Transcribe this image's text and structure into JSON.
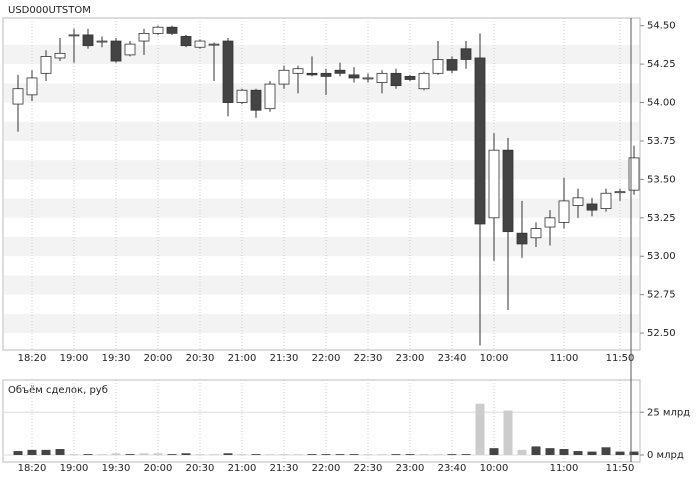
{
  "chart_data": [
    {
      "type": "candlestick",
      "title": "USD000UTSTOM",
      "categories": [
        null,
        "18:20",
        null,
        null,
        "19:00",
        null,
        null,
        "19:30",
        null,
        null,
        "20:00",
        null,
        null,
        "20:30",
        null,
        null,
        "21:00",
        null,
        null,
        "21:30",
        null,
        null,
        "22:00",
        null,
        null,
        "22:30",
        null,
        null,
        "23:00",
        null,
        null,
        "23:40",
        null,
        null,
        "10:00",
        null,
        null,
        null,
        null,
        "11:00",
        null,
        null,
        null,
        "11:50",
        null
      ],
      "open": [
        53.99,
        54.05,
        54.19,
        54.29,
        54.44,
        54.44,
        54.4,
        54.4,
        54.31,
        54.4,
        54.45,
        54.49,
        54.43,
        54.36,
        54.38,
        54.4,
        54.0,
        54.08,
        53.96,
        54.12,
        54.19,
        54.19,
        54.19,
        54.21,
        54.18,
        54.16,
        54.13,
        54.19,
        54.17,
        54.09,
        54.19,
        54.28,
        54.35,
        54.29,
        53.25,
        53.69,
        53.15,
        53.12,
        53.19,
        53.22,
        53.33,
        53.34,
        53.31,
        53.42,
        53.43
      ],
      "high": [
        54.18,
        54.21,
        54.34,
        54.42,
        54.48,
        54.48,
        54.43,
        54.42,
        54.4,
        54.48,
        54.5,
        54.5,
        54.44,
        54.41,
        54.39,
        54.42,
        54.09,
        54.09,
        54.14,
        54.24,
        54.24,
        54.3,
        54.22,
        54.26,
        54.23,
        54.19,
        54.21,
        54.22,
        54.18,
        54.2,
        54.4,
        54.3,
        54.4,
        54.45,
        53.8,
        53.77,
        53.36,
        53.22,
        53.3,
        53.51,
        53.44,
        53.38,
        53.44,
        53.44,
        53.72
      ],
      "low": [
        53.81,
        54.01,
        54.14,
        54.27,
        54.26,
        54.35,
        54.36,
        54.26,
        54.3,
        54.31,
        54.44,
        54.44,
        54.36,
        54.35,
        54.14,
        53.91,
        53.99,
        53.9,
        53.94,
        54.09,
        54.06,
        54.17,
        54.05,
        54.17,
        54.13,
        54.13,
        54.06,
        54.09,
        54.14,
        54.08,
        54.18,
        54.19,
        54.22,
        52.42,
        52.97,
        52.65,
        52.99,
        53.06,
        53.07,
        53.18,
        53.25,
        53.26,
        53.29,
        53.36,
        53.4
      ],
      "close": [
        54.09,
        54.16,
        54.3,
        54.32,
        54.44,
        54.37,
        54.4,
        54.27,
        54.38,
        54.45,
        54.49,
        54.45,
        54.37,
        54.4,
        54.38,
        54.0,
        54.08,
        53.95,
        54.12,
        54.21,
        54.22,
        54.18,
        54.17,
        54.19,
        54.16,
        54.16,
        54.19,
        54.11,
        54.15,
        54.19,
        54.28,
        54.21,
        54.28,
        53.21,
        53.69,
        53.16,
        53.08,
        53.18,
        53.25,
        53.36,
        53.38,
        53.3,
        53.41,
        53.42,
        53.64
      ],
      "up_color": "#ffffff",
      "down_color": "#444444",
      "ylim": [
        52.39,
        54.55
      ],
      "yticks": [
        {
          "value": 52.5,
          "label": "52.50"
        },
        {
          "value": 52.75,
          "label": "52.75"
        },
        {
          "value": 53,
          "label": "53.00"
        },
        {
          "value": 53.25,
          "label": "53.25"
        },
        {
          "value": 53.5,
          "label": "53.50"
        },
        {
          "value": 53.75,
          "label": "53.75"
        },
        {
          "value": 54,
          "label": "54.00"
        },
        {
          "value": 54.25,
          "label": "54.25"
        },
        {
          "value": 54.5,
          "label": "54.50"
        }
      ]
    },
    {
      "type": "bar",
      "title": "Объём сделок, руб",
      "values": [
        2.3,
        3,
        3,
        3.5,
        0.5,
        0.5,
        0.5,
        1,
        0.5,
        1,
        1,
        0.5,
        1,
        0.5,
        0.5,
        1,
        0.5,
        0.5,
        0.5,
        0.5,
        0.5,
        0.5,
        0.5,
        0.5,
        0.5,
        0.5,
        0.5,
        0.5,
        0.5,
        0.5,
        0.5,
        0.5,
        0.5,
        30,
        4,
        26,
        3,
        5,
        4,
        3.5,
        2.3,
        2,
        4.5,
        2,
        2
      ],
      "colors": [
        "#444",
        "#444",
        "#444",
        "#444",
        "#ccc",
        "#444",
        "#ccc",
        "#ccc",
        "#444",
        "#ccc",
        "#ccc",
        "#444",
        "#444",
        "#ccc",
        "#ccc",
        "#444",
        "#ccc",
        "#444",
        "#ccc",
        "#ccc",
        "#ccc",
        "#444",
        "#444",
        "#444",
        "#444",
        "#ccc",
        "#ccc",
        "#444",
        "#444",
        "#ccc",
        "#ccc",
        "#444",
        "#444",
        "#ccc",
        "#444",
        "#ccc",
        "#ccc",
        "#444",
        "#444",
        "#444",
        "#444",
        "#444",
        "#444",
        "#444",
        "#444"
      ],
      "ylim": [
        0,
        31
      ],
      "yticks": [
        {
          "value": 0,
          "label": "0 млрд"
        },
        {
          "value": 25,
          "label": "25 млрд"
        }
      ]
    }
  ]
}
